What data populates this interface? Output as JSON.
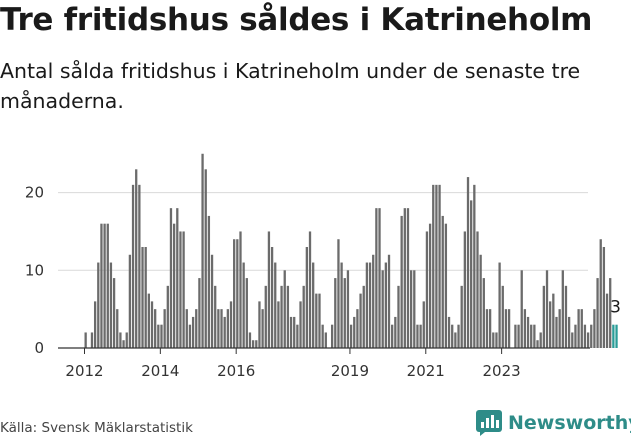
{
  "title": "Tre fritidshus såldes i Katrineholm",
  "subtitle": "Antal sålda fritidshus i Katrineholm under de senaste tre månaderna.",
  "source": "Källa: Svensk Mäklarstatistik",
  "brand": "Newsworthy",
  "colors": {
    "bar": "#6b6b6b",
    "highlight": "#2a9d98",
    "brand": "#2e8c88"
  },
  "chart_data": {
    "type": "bar",
    "start_month": "2012-01",
    "x_tick_labels": [
      "2012",
      "2014",
      "2016",
      "2019",
      "2021",
      "2023"
    ],
    "y_ticks": [
      0,
      10,
      20
    ],
    "ylim": [
      0,
      26
    ],
    "grid": true,
    "highlight_last": 2,
    "last_value_label": "3",
    "values": [
      2,
      0,
      2,
      6,
      11,
      16,
      16,
      16,
      11,
      9,
      5,
      2,
      1,
      2,
      12,
      21,
      23,
      21,
      13,
      13,
      7,
      6,
      5,
      3,
      3,
      5,
      8,
      18,
      16,
      18,
      15,
      15,
      5,
      3,
      4,
      5,
      9,
      25,
      23,
      17,
      12,
      8,
      5,
      5,
      4,
      5,
      6,
      14,
      14,
      15,
      11,
      9,
      2,
      1,
      1,
      6,
      5,
      8,
      15,
      13,
      11,
      6,
      8,
      10,
      8,
      4,
      4,
      3,
      6,
      8,
      13,
      15,
      11,
      7,
      7,
      3,
      2,
      0,
      3,
      9,
      14,
      11,
      9,
      10,
      3,
      4,
      5,
      7,
      8,
      11,
      11,
      12,
      18,
      18,
      10,
      11,
      12,
      3,
      4,
      8,
      17,
      18,
      18,
      10,
      10,
      3,
      3,
      6,
      15,
      16,
      21,
      21,
      21,
      17,
      16,
      4,
      3,
      2,
      3,
      8,
      15,
      22,
      19,
      21,
      15,
      12,
      9,
      5,
      5,
      2,
      2,
      11,
      8,
      5,
      5,
      0,
      3,
      3,
      10,
      5,
      4,
      3,
      3,
      1,
      2,
      8,
      10,
      6,
      7,
      4,
      5,
      10,
      8,
      4,
      2,
      3,
      5,
      5,
      3,
      2,
      3,
      5,
      9,
      14,
      13,
      7,
      9,
      3,
      3
    ]
  }
}
